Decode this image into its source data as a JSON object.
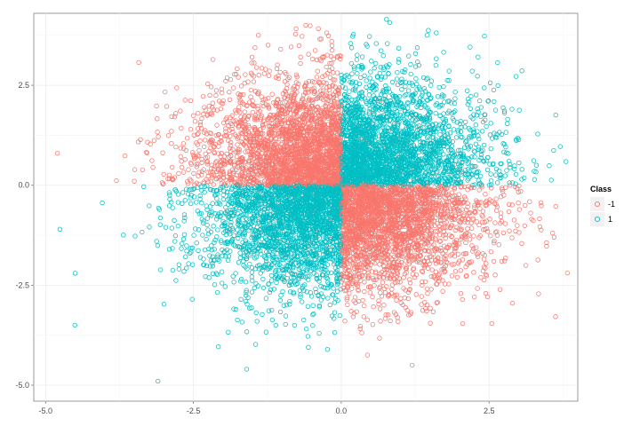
{
  "chart_data": {
    "type": "scatter",
    "title": "",
    "xlabel": "",
    "ylabel": "",
    "xlim": [
      -5.2,
      4.0
    ],
    "ylim": [
      -5.4,
      4.3
    ],
    "x_ticks": [
      -5.0,
      -2.5,
      0.0,
      2.5
    ],
    "x_tick_labels": [
      "-5.0",
      "-2.5",
      "0.0",
      "2.5"
    ],
    "y_ticks": [
      -5.0,
      -2.5,
      0.0,
      2.5
    ],
    "y_tick_labels": [
      "-5.0",
      "-2.5",
      "0.0",
      "2.5"
    ],
    "grid": true,
    "legend": {
      "title": "Class",
      "position": "right",
      "entries": [
        {
          "label": "-1",
          "color": "#F8766D"
        },
        {
          "label": "1",
          "color": "#00BFC4"
        }
      ]
    },
    "series": [
      {
        "name": "-1",
        "color": "#F8766D",
        "marker": "open-circle",
        "rule": "sign(x) != sign(y)",
        "distribution": {
          "x_mean": 0.0,
          "x_sd": 1.15,
          "y_mean": 0.0,
          "y_sd": 1.25,
          "approx_count": 5000
        },
        "notable_points": [
          [
            -0.6,
            4.0
          ],
          [
            -4.8,
            0.8
          ],
          [
            3.6,
            -1.3
          ],
          [
            1.2,
            -4.5
          ],
          [
            -0.3,
            3.2
          ]
        ]
      },
      {
        "name": "1",
        "color": "#00BFC4",
        "marker": "open-circle",
        "rule": "sign(x) == sign(y)",
        "distribution": {
          "x_mean": 0.0,
          "x_sd": 1.15,
          "y_mean": 0.0,
          "y_sd": 1.25,
          "approx_count": 5000
        },
        "notable_points": [
          [
            -3.1,
            -4.9
          ],
          [
            -4.5,
            -2.2
          ],
          [
            3.3,
            0.5
          ],
          [
            -1.6,
            -4.6
          ],
          [
            1.6,
            3.0
          ]
        ]
      }
    ]
  }
}
